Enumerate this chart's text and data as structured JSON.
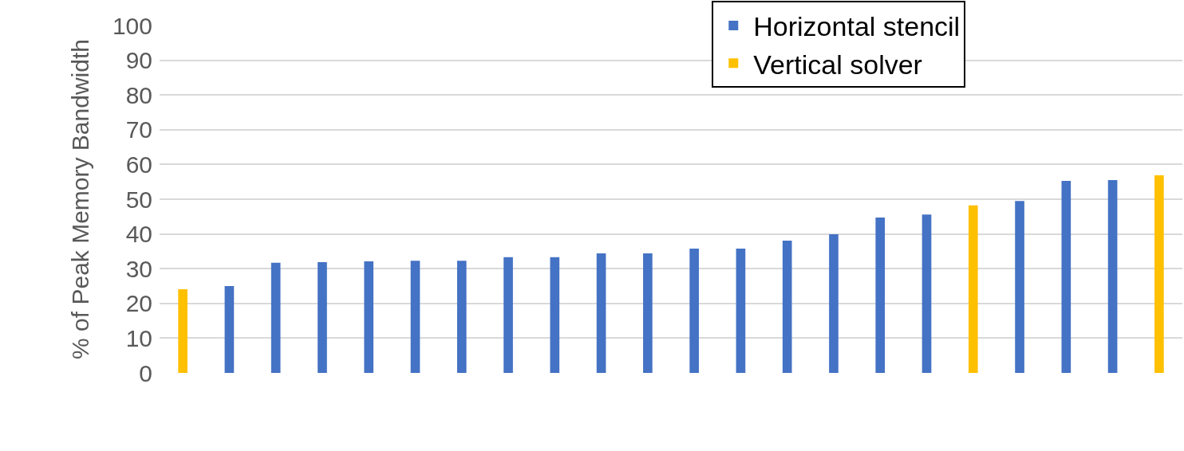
{
  "chart_data": {
    "type": "bar",
    "ylabel": "% of Peak Memory Bandwidth",
    "categories": [
      null,
      null,
      null,
      null,
      null,
      null,
      null,
      null,
      null,
      null,
      null,
      null,
      null,
      null,
      null,
      null,
      null,
      null,
      null,
      null,
      null,
      null
    ],
    "series": [
      {
        "name": "Horizontal stencil",
        "color": "#4472c4",
        "values": [
          null,
          25,
          31.7,
          31.9,
          32.1,
          32.3,
          32.3,
          33.3,
          33.3,
          34.4,
          34.4,
          35.8,
          35.8,
          38.1,
          39.9,
          44.7,
          45.6,
          null,
          49.5,
          55.3,
          55.5,
          null
        ]
      },
      {
        "name": "Vertical solver",
        "color": "#ffc000",
        "values": [
          24.1,
          null,
          null,
          null,
          null,
          null,
          null,
          null,
          null,
          null,
          null,
          null,
          null,
          null,
          null,
          null,
          null,
          48.2,
          null,
          null,
          null,
          56.9
        ]
      }
    ],
    "ylim": [
      0,
      100
    ],
    "yticks": [
      0,
      10,
      20,
      30,
      40,
      50,
      60,
      70,
      80,
      90,
      100
    ],
    "grid": "y",
    "legend": "top right",
    "tick_labels": "y"
  }
}
